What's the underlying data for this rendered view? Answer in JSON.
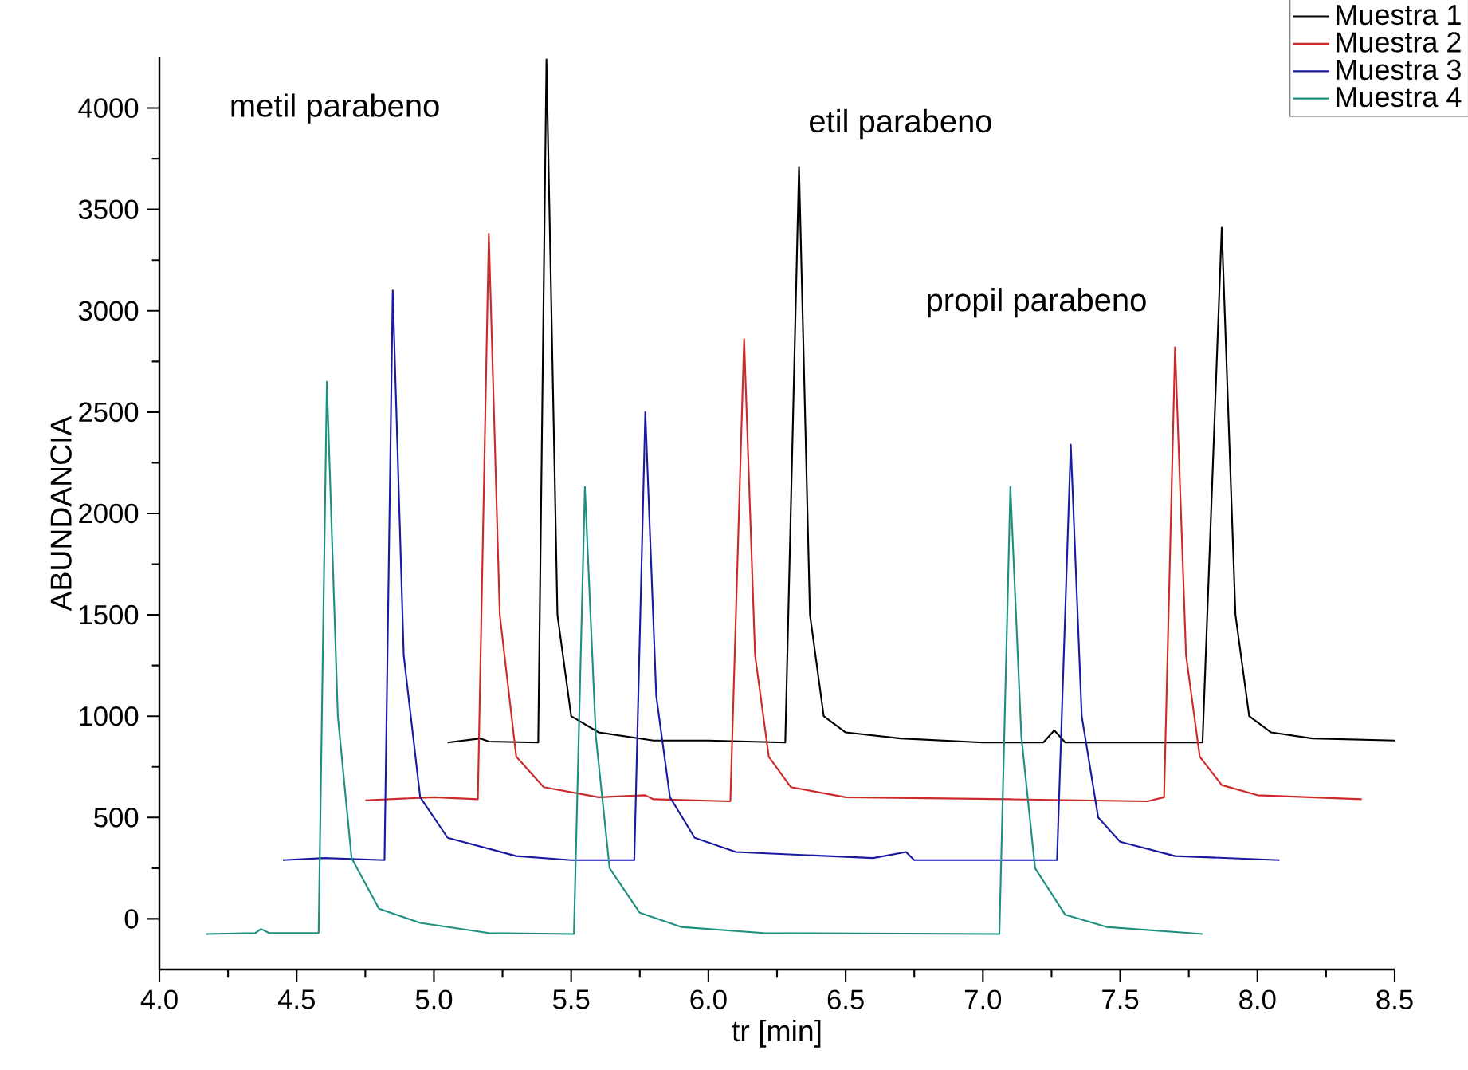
{
  "chart_data": {
    "type": "line",
    "xlabel": "tr [min]",
    "ylabel": "ABUNDANCIA",
    "xlim": [
      4.0,
      8.5
    ],
    "ylim": [
      -250,
      4250
    ],
    "xticks": [
      {
        "value": 4,
        "label": "4.0"
      },
      4.5,
      {
        "value": 5,
        "label": "5.0"
      },
      5.5,
      {
        "value": 6,
        "label": "6.0"
      },
      6.5,
      {
        "value": 7,
        "label": "7.0"
      },
      7.5,
      {
        "value": 8,
        "label": "8.0"
      },
      8.5
    ],
    "yticks": [
      0,
      500,
      1000,
      1500,
      2000,
      2500,
      3000,
      3500,
      4000
    ],
    "legend": "top right",
    "grid": false,
    "marker": "none",
    "line_style": "solid",
    "annotations": [
      "metil parabeno",
      "etil parabeno",
      "propil parabeno"
    ],
    "series": [
      {
        "name": "Muestra 1",
        "color": "#000000",
        "x": [
          5.05,
          5.17,
          5.2,
          5.38,
          5.41,
          5.45,
          5.5,
          5.6,
          5.8,
          6.0,
          6.28,
          6.33,
          6.37,
          6.42,
          6.5,
          6.7,
          7.0,
          7.22,
          7.26,
          7.3,
          7.8,
          7.87,
          7.92,
          7.97,
          8.05,
          8.2,
          8.5
        ],
        "values": [
          870,
          890,
          875,
          870,
          4240,
          1500,
          1000,
          920,
          880,
          880,
          870,
          3710,
          1500,
          1000,
          920,
          890,
          870,
          870,
          930,
          870,
          870,
          3410,
          1500,
          1000,
          920,
          890,
          880
        ]
      },
      {
        "name": "Muestra 2",
        "color": "#cc2a2a",
        "x": [
          4.75,
          5.0,
          5.16,
          5.2,
          5.24,
          5.3,
          5.4,
          5.6,
          5.77,
          5.8,
          6.08,
          6.13,
          6.17,
          6.22,
          6.3,
          6.5,
          7.1,
          7.6,
          7.66,
          7.7,
          7.74,
          7.79,
          7.87,
          8.0,
          8.38
        ],
        "values": [
          585,
          600,
          590,
          3380,
          1500,
          800,
          650,
          600,
          610,
          590,
          580,
          2860,
          1300,
          800,
          650,
          600,
          590,
          580,
          600,
          2820,
          1300,
          800,
          660,
          610,
          590
        ]
      },
      {
        "name": "Muestra 3",
        "color": "#1a1aa0",
        "x": [
          4.45,
          4.6,
          4.82,
          4.85,
          4.89,
          4.95,
          5.05,
          5.3,
          5.5,
          5.73,
          5.77,
          5.81,
          5.86,
          5.95,
          6.1,
          6.6,
          6.72,
          6.75,
          7.27,
          7.32,
          7.36,
          7.42,
          7.5,
          7.7,
          8.08
        ],
        "values": [
          290,
          300,
          290,
          3100,
          1300,
          600,
          400,
          310,
          290,
          290,
          2500,
          1100,
          600,
          400,
          330,
          300,
          330,
          290,
          290,
          2340,
          1000,
          500,
          380,
          310,
          290
        ]
      },
      {
        "name": "Muestra 4",
        "color": "#1f9080",
        "x": [
          4.17,
          4.35,
          4.37,
          4.4,
          4.58,
          4.61,
          4.65,
          4.7,
          4.8,
          4.95,
          5.2,
          5.51,
          5.55,
          5.59,
          5.64,
          5.75,
          5.9,
          6.2,
          7.06,
          7.1,
          7.14,
          7.19,
          7.3,
          7.45,
          7.8
        ],
        "values": [
          -75,
          -70,
          -50,
          -70,
          -70,
          2650,
          1000,
          300,
          50,
          -20,
          -70,
          -75,
          2130,
          900,
          250,
          30,
          -40,
          -70,
          -75,
          2130,
          900,
          250,
          20,
          -40,
          -75
        ]
      }
    ]
  }
}
